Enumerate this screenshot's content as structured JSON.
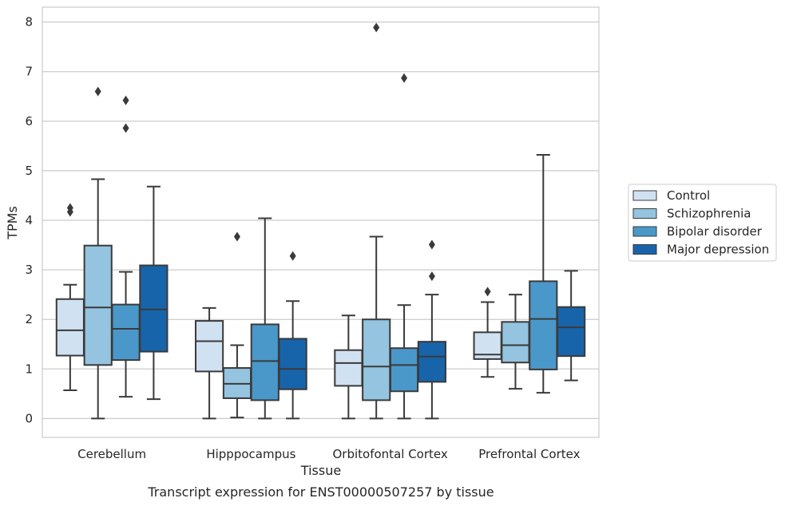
{
  "chart_data": {
    "type": "box",
    "title": "",
    "caption": "Transcript expression for ENST00000507257 by tissue",
    "xlabel": "Tissue",
    "ylabel": "TPMs",
    "ylim": [
      -0.38,
      8.3
    ],
    "yticks": [
      0,
      1,
      2,
      3,
      4,
      5,
      6,
      7,
      8
    ],
    "grid": "horizontal",
    "legend_position": "right",
    "categories": [
      "Cerebellum",
      "Hipppocampus",
      "Orbitofontal Cortex",
      "Prefrontal Cortex"
    ],
    "series": [
      {
        "name": "Control",
        "color": "#d0e1f2",
        "boxes": [
          {
            "whislo": 0.57,
            "q1": 1.27,
            "med": 1.78,
            "q3": 2.41,
            "whishi": 2.7,
            "fliers": [
              4.25,
              4.17
            ]
          },
          {
            "whislo": 0.0,
            "q1": 0.95,
            "med": 1.56,
            "q3": 1.97,
            "whishi": 2.23,
            "fliers": []
          },
          {
            "whislo": 0.0,
            "q1": 0.66,
            "med": 1.12,
            "q3": 1.38,
            "whishi": 2.08,
            "fliers": []
          },
          {
            "whislo": 0.84,
            "q1": 1.2,
            "med": 1.29,
            "q3": 1.74,
            "whishi": 2.35,
            "fliers": [
              2.56
            ]
          }
        ]
      },
      {
        "name": "Schizophrenia",
        "color": "#94c4df",
        "boxes": [
          {
            "whislo": 0.0,
            "q1": 1.08,
            "med": 2.24,
            "q3": 3.49,
            "whishi": 4.83,
            "fliers": [
              6.6
            ]
          },
          {
            "whislo": 0.02,
            "q1": 0.41,
            "med": 0.7,
            "q3": 1.02,
            "whishi": 1.48,
            "fliers": [
              3.67
            ]
          },
          {
            "whislo": 0.0,
            "q1": 0.37,
            "med": 1.05,
            "q3": 2.0,
            "whishi": 3.67,
            "fliers": [
              7.89
            ]
          },
          {
            "whislo": 0.6,
            "q1": 1.13,
            "med": 1.48,
            "q3": 1.95,
            "whishi": 2.5,
            "fliers": []
          }
        ]
      },
      {
        "name": "Bipolar disorder",
        "color": "#4a98c9",
        "boxes": [
          {
            "whislo": 0.44,
            "q1": 1.18,
            "med": 1.81,
            "q3": 2.3,
            "whishi": 2.96,
            "fliers": [
              6.42,
              5.86
            ]
          },
          {
            "whislo": 0.0,
            "q1": 0.37,
            "med": 1.16,
            "q3": 1.9,
            "whishi": 4.04,
            "fliers": []
          },
          {
            "whislo": 0.0,
            "q1": 0.55,
            "med": 1.08,
            "q3": 1.42,
            "whishi": 2.29,
            "fliers": [
              6.87
            ]
          },
          {
            "whislo": 0.52,
            "q1": 0.99,
            "med": 2.01,
            "q3": 2.77,
            "whishi": 5.32,
            "fliers": []
          }
        ]
      },
      {
        "name": "Major depression",
        "color": "#1764ab",
        "boxes": [
          {
            "whislo": 0.39,
            "q1": 1.35,
            "med": 2.2,
            "q3": 3.09,
            "whishi": 4.68,
            "fliers": []
          },
          {
            "whislo": 0.0,
            "q1": 0.59,
            "med": 1.0,
            "q3": 1.61,
            "whishi": 2.37,
            "fliers": [
              3.28
            ]
          },
          {
            "whislo": 0.0,
            "q1": 0.74,
            "med": 1.25,
            "q3": 1.55,
            "whishi": 2.5,
            "fliers": [
              3.51,
              2.87
            ]
          },
          {
            "whislo": 0.77,
            "q1": 1.26,
            "med": 1.84,
            "q3": 2.25,
            "whishi": 2.98,
            "fliers": []
          }
        ]
      }
    ]
  }
}
